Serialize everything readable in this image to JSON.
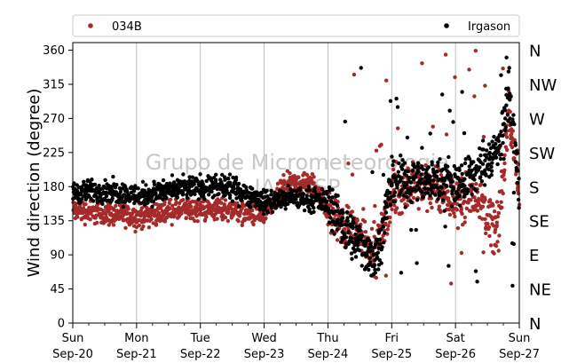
{
  "chart_data": {
    "type": "scatter",
    "ylabel": "Wind direction (degree)",
    "ylim": [
      0,
      370
    ],
    "yticks": [
      0,
      45,
      90,
      135,
      180,
      225,
      270,
      315,
      360
    ],
    "xlim": [
      "2020-09-20",
      "2020-09-27"
    ],
    "xticks": [
      {
        "day": "Sun",
        "date": "Sep-20"
      },
      {
        "day": "Mon",
        "date": "Sep-21"
      },
      {
        "day": "Tue",
        "date": "Sep-22"
      },
      {
        "day": "Wed",
        "date": "Sep-23"
      },
      {
        "day": "Thu",
        "date": "Sep-24"
      },
      {
        "day": "Fri",
        "date": "Sep-25"
      },
      {
        "day": "Sat",
        "date": "Sep-26"
      },
      {
        "day": "Sun",
        "date": "Sep-27"
      }
    ],
    "compass_labels": [
      "N",
      "NE",
      "E",
      "SE",
      "S",
      "SW",
      "W",
      "NW",
      "N"
    ],
    "grid": "vertical",
    "legend_position": "top",
    "watermark": [
      "Grupo de Micrometeorologia",
      "IAG/USP"
    ],
    "series": [
      {
        "name": "034B",
        "color": "#a52a2a",
        "profile": [
          [
            "2020-09-20",
            148
          ],
          [
            "2020-09-20T12:00",
            145
          ],
          [
            "2020-09-21",
            140
          ],
          [
            "2020-09-21T12:00",
            148
          ],
          [
            "2020-09-22",
            150
          ],
          [
            "2020-09-22T12:00",
            150
          ],
          [
            "2020-09-23",
            140
          ],
          [
            "2020-09-23T08:00",
            182
          ],
          [
            "2020-09-23T18:00",
            183
          ],
          [
            "2020-09-24",
            150
          ],
          [
            "2020-09-24T06:00",
            128
          ],
          [
            "2020-09-24T12:00",
            120
          ],
          [
            "2020-09-24T18:00",
            95
          ],
          [
            "2020-09-25",
            170
          ],
          [
            "2020-09-25T12:00",
            185
          ],
          [
            "2020-09-26",
            160
          ],
          [
            "2020-09-26T08:00",
            170
          ],
          [
            "2020-09-26T16:00",
            120
          ],
          [
            "2020-09-26T20:00",
            280
          ],
          [
            "2020-09-27",
            175
          ]
        ]
      },
      {
        "name": "Irgason",
        "color": "#000000",
        "profile": [
          [
            "2020-09-20",
            172
          ],
          [
            "2020-09-20T12:00",
            175
          ],
          [
            "2020-09-21",
            168
          ],
          [
            "2020-09-21T12:00",
            175
          ],
          [
            "2020-09-22",
            180
          ],
          [
            "2020-09-22T12:00",
            178
          ],
          [
            "2020-09-23",
            160
          ],
          [
            "2020-09-23T12:00",
            165
          ],
          [
            "2020-09-24",
            160
          ],
          [
            "2020-09-24T06:00",
            130
          ],
          [
            "2020-09-24T12:00",
            105
          ],
          [
            "2020-09-24T18:00",
            85
          ],
          [
            "2020-09-25",
            185
          ],
          [
            "2020-09-25T12:00",
            190
          ],
          [
            "2020-09-26",
            185
          ],
          [
            "2020-09-26T08:00",
            200
          ],
          [
            "2020-09-26T16:00",
            230
          ],
          [
            "2020-09-26T20:00",
            310
          ],
          [
            "2020-09-27",
            170
          ]
        ]
      }
    ]
  }
}
